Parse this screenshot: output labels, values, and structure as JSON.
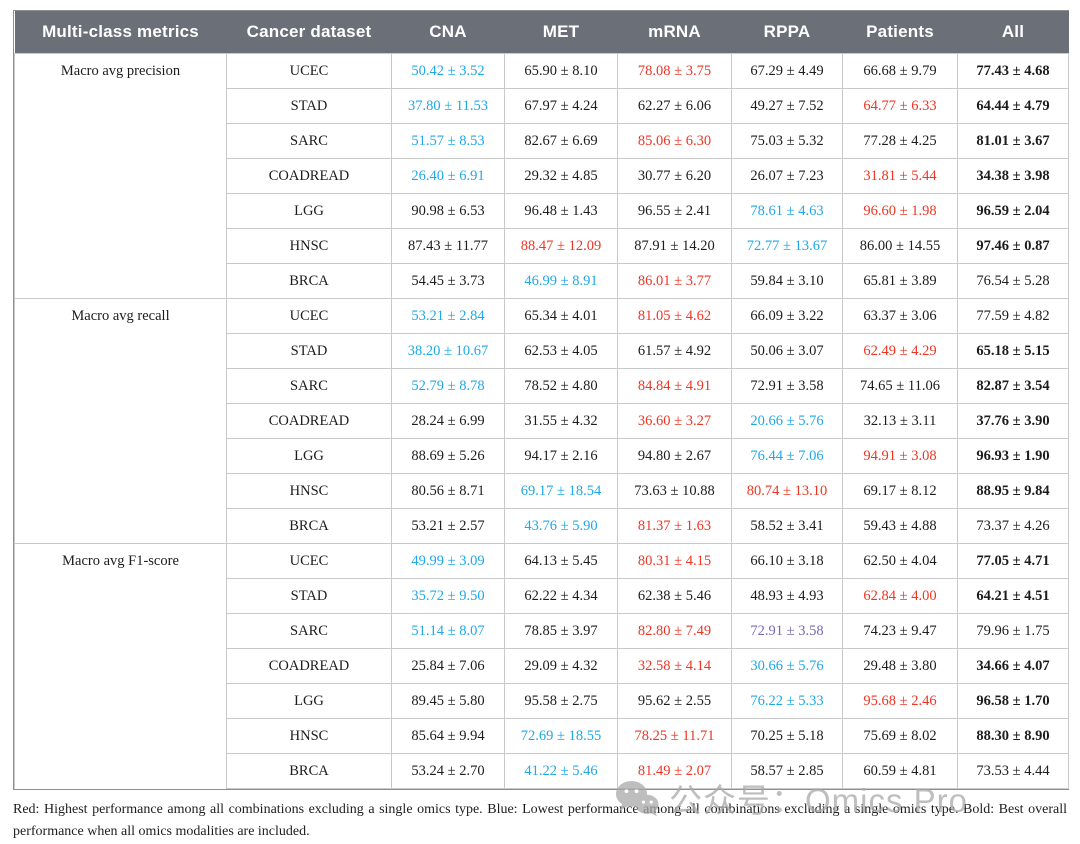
{
  "colors": {
    "header_bg": "#6b6f78",
    "red": "#ee3524",
    "blue": "#1fa8e8",
    "purple": "#7b68ae",
    "grid_line": "#c9c9c9",
    "outer_border": "#8f8f8f"
  },
  "header": {
    "columns": [
      "Multi-class metrics",
      "Cancer dataset",
      "CNA",
      "MET",
      "mRNA",
      "RPPA",
      "Patients",
      "All"
    ]
  },
  "sections": [
    {
      "metric": "Macro avg precision",
      "rows": [
        {
          "dataset": "UCEC",
          "cells": [
            {
              "v": "50.42 ± 3.52",
              "s": "blue"
            },
            {
              "v": "65.90 ± 8.10",
              "s": "plain"
            },
            {
              "v": "78.08 ± 3.75",
              "s": "red"
            },
            {
              "v": "67.29 ± 4.49",
              "s": "plain"
            },
            {
              "v": "66.68 ± 9.79",
              "s": "plain"
            },
            {
              "v": "77.43 ± 4.68",
              "s": "bold"
            }
          ]
        },
        {
          "dataset": "STAD",
          "cells": [
            {
              "v": "37.80 ± 11.53",
              "s": "blue"
            },
            {
              "v": "67.97 ± 4.24",
              "s": "plain"
            },
            {
              "v": "62.27 ± 6.06",
              "s": "plain"
            },
            {
              "v": "49.27 ± 7.52",
              "s": "plain"
            },
            {
              "v": "64.77 ± 6.33",
              "s": "red"
            },
            {
              "v": "64.44 ± 4.79",
              "s": "bold"
            }
          ]
        },
        {
          "dataset": "SARC",
          "cells": [
            {
              "v": "51.57 ± 8.53",
              "s": "blue"
            },
            {
              "v": "82.67 ± 6.69",
              "s": "plain"
            },
            {
              "v": "85.06 ± 6.30",
              "s": "red"
            },
            {
              "v": "75.03 ± 5.32",
              "s": "plain"
            },
            {
              "v": "77.28 ± 4.25",
              "s": "plain"
            },
            {
              "v": "81.01 ± 3.67",
              "s": "bold"
            }
          ]
        },
        {
          "dataset": "COADREAD",
          "cells": [
            {
              "v": "26.40 ± 6.91",
              "s": "blue"
            },
            {
              "v": "29.32 ± 4.85",
              "s": "plain"
            },
            {
              "v": "30.77 ± 6.20",
              "s": "plain"
            },
            {
              "v": "26.07 ± 7.23",
              "s": "plain"
            },
            {
              "v": "31.81 ± 5.44",
              "s": "red"
            },
            {
              "v": "34.38 ± 3.98",
              "s": "bold"
            }
          ]
        },
        {
          "dataset": "LGG",
          "cells": [
            {
              "v": "90.98 ± 6.53",
              "s": "plain"
            },
            {
              "v": "96.48 ± 1.43",
              "s": "plain"
            },
            {
              "v": "96.55 ± 2.41",
              "s": "plain"
            },
            {
              "v": "78.61 ± 4.63",
              "s": "blue"
            },
            {
              "v": "96.60 ± 1.98",
              "s": "red"
            },
            {
              "v": "96.59 ± 2.04",
              "s": "bold"
            }
          ]
        },
        {
          "dataset": "HNSC",
          "cells": [
            {
              "v": "87.43 ± 11.77",
              "s": "plain"
            },
            {
              "v": "88.47 ± 12.09",
              "s": "red"
            },
            {
              "v": "87.91 ± 14.20",
              "s": "plain"
            },
            {
              "v": "72.77 ± 13.67",
              "s": "blue"
            },
            {
              "v": "86.00 ± 14.55",
              "s": "plain"
            },
            {
              "v": "97.46 ± 0.87",
              "s": "bold"
            }
          ]
        },
        {
          "dataset": "BRCA",
          "cells": [
            {
              "v": "54.45 ± 3.73",
              "s": "plain"
            },
            {
              "v": "46.99 ± 8.91",
              "s": "blue"
            },
            {
              "v": "86.01 ± 3.77",
              "s": "red"
            },
            {
              "v": "59.84 ± 3.10",
              "s": "plain"
            },
            {
              "v": "65.81 ± 3.89",
              "s": "plain"
            },
            {
              "v": "76.54 ± 5.28",
              "s": "plain"
            }
          ]
        }
      ]
    },
    {
      "metric": "Macro avg recall",
      "rows": [
        {
          "dataset": "UCEC",
          "cells": [
            {
              "v": "53.21 ± 2.84",
              "s": "blue"
            },
            {
              "v": "65.34 ± 4.01",
              "s": "plain"
            },
            {
              "v": "81.05 ± 4.62",
              "s": "red"
            },
            {
              "v": "66.09 ± 3.22",
              "s": "plain"
            },
            {
              "v": "63.37 ± 3.06",
              "s": "plain"
            },
            {
              "v": "77.59 ± 4.82",
              "s": "plain"
            }
          ]
        },
        {
          "dataset": "STAD",
          "cells": [
            {
              "v": "38.20 ± 10.67",
              "s": "blue"
            },
            {
              "v": "62.53 ± 4.05",
              "s": "plain"
            },
            {
              "v": "61.57 ± 4.92",
              "s": "plain"
            },
            {
              "v": "50.06 ± 3.07",
              "s": "plain"
            },
            {
              "v": "62.49 ± 4.29",
              "s": "red"
            },
            {
              "v": "65.18 ± 5.15",
              "s": "bold"
            }
          ]
        },
        {
          "dataset": "SARC",
          "cells": [
            {
              "v": "52.79 ± 8.78",
              "s": "blue"
            },
            {
              "v": "78.52 ± 4.80",
              "s": "plain"
            },
            {
              "v": "84.84 ± 4.91",
              "s": "red"
            },
            {
              "v": "72.91 ± 3.58",
              "s": "plain"
            },
            {
              "v": "74.65 ± 11.06",
              "s": "plain"
            },
            {
              "v": "82.87 ± 3.54",
              "s": "bold"
            }
          ]
        },
        {
          "dataset": "COADREAD",
          "cells": [
            {
              "v": "28.24 ± 6.99",
              "s": "plain"
            },
            {
              "v": "31.55 ± 4.32",
              "s": "plain"
            },
            {
              "v": "36.60 ± 3.27",
              "s": "red"
            },
            {
              "v": "20.66 ± 5.76",
              "s": "blue"
            },
            {
              "v": "32.13 ± 3.11",
              "s": "plain"
            },
            {
              "v": "37.76 ± 3.90",
              "s": "bold"
            }
          ]
        },
        {
          "dataset": "LGG",
          "cells": [
            {
              "v": "88.69 ± 5.26",
              "s": "plain"
            },
            {
              "v": "94.17 ± 2.16",
              "s": "plain"
            },
            {
              "v": "94.80 ± 2.67",
              "s": "plain"
            },
            {
              "v": "76.44 ± 7.06",
              "s": "blue"
            },
            {
              "v": "94.91 ± 3.08",
              "s": "red"
            },
            {
              "v": "96.93 ± 1.90",
              "s": "bold"
            }
          ]
        },
        {
          "dataset": "HNSC",
          "cells": [
            {
              "v": "80.56 ± 8.71",
              "s": "plain"
            },
            {
              "v": "69.17 ± 18.54",
              "s": "blue"
            },
            {
              "v": "73.63 ± 10.88",
              "s": "plain"
            },
            {
              "v": "80.74 ± 13.10",
              "s": "red"
            },
            {
              "v": "69.17 ± 8.12",
              "s": "plain"
            },
            {
              "v": "88.95 ± 9.84",
              "s": "bold"
            }
          ]
        },
        {
          "dataset": "BRCA",
          "cells": [
            {
              "v": "53.21 ± 2.57",
              "s": "plain"
            },
            {
              "v": "43.76 ± 5.90",
              "s": "blue"
            },
            {
              "v": "81.37 ± 1.63",
              "s": "red"
            },
            {
              "v": "58.52 ± 3.41",
              "s": "plain"
            },
            {
              "v": "59.43 ± 4.88",
              "s": "plain"
            },
            {
              "v": "73.37 ± 4.26",
              "s": "plain"
            }
          ]
        }
      ]
    },
    {
      "metric": "Macro avg F1-score",
      "rows": [
        {
          "dataset": "UCEC",
          "cells": [
            {
              "v": "49.99 ± 3.09",
              "s": "blue"
            },
            {
              "v": "64.13 ± 5.45",
              "s": "plain"
            },
            {
              "v": "80.31 ± 4.15",
              "s": "red"
            },
            {
              "v": "66.10 ± 3.18",
              "s": "plain"
            },
            {
              "v": "62.50 ± 4.04",
              "s": "plain"
            },
            {
              "v": "77.05 ± 4.71",
              "s": "bold"
            }
          ]
        },
        {
          "dataset": "STAD",
          "cells": [
            {
              "v": "35.72 ± 9.50",
              "s": "blue"
            },
            {
              "v": "62.22 ± 4.34",
              "s": "plain"
            },
            {
              "v": "62.38 ± 5.46",
              "s": "plain"
            },
            {
              "v": "48.93 ± 4.93",
              "s": "plain"
            },
            {
              "v": "62.84 ± 4.00",
              "s": "red"
            },
            {
              "v": "64.21 ± 4.51",
              "s": "bold"
            }
          ]
        },
        {
          "dataset": "SARC",
          "cells": [
            {
              "v": "51.14 ± 8.07",
              "s": "blue"
            },
            {
              "v": "78.85 ± 3.97",
              "s": "plain"
            },
            {
              "v": "82.80 ± 7.49",
              "s": "red"
            },
            {
              "v": "72.91 ± 3.58",
              "s": "purple"
            },
            {
              "v": "74.23 ± 9.47",
              "s": "plain"
            },
            {
              "v": "79.96 ± 1.75",
              "s": "plain"
            }
          ]
        },
        {
          "dataset": "COADREAD",
          "cells": [
            {
              "v": "25.84 ± 7.06",
              "s": "plain"
            },
            {
              "v": "29.09 ± 4.32",
              "s": "plain"
            },
            {
              "v": "32.58 ± 4.14",
              "s": "red"
            },
            {
              "v": "30.66 ± 5.76",
              "s": "blue"
            },
            {
              "v": "29.48 ± 3.80",
              "s": "plain"
            },
            {
              "v": "34.66 ± 4.07",
              "s": "bold"
            }
          ]
        },
        {
          "dataset": "LGG",
          "cells": [
            {
              "v": "89.45 ± 5.80",
              "s": "plain"
            },
            {
              "v": "95.58 ± 2.75",
              "s": "plain"
            },
            {
              "v": "95.62 ± 2.55",
              "s": "plain"
            },
            {
              "v": "76.22 ± 5.33",
              "s": "blue"
            },
            {
              "v": "95.68 ± 2.46",
              "s": "red"
            },
            {
              "v": "96.58 ± 1.70",
              "s": "bold"
            }
          ]
        },
        {
          "dataset": "HNSC",
          "cells": [
            {
              "v": "85.64 ± 9.94",
              "s": "plain"
            },
            {
              "v": "72.69 ± 18.55",
              "s": "blue"
            },
            {
              "v": "78.25 ± 11.71",
              "s": "red"
            },
            {
              "v": "70.25 ± 5.18",
              "s": "plain"
            },
            {
              "v": "75.69 ± 8.02",
              "s": "plain"
            },
            {
              "v": "88.30 ± 8.90",
              "s": "bold"
            }
          ]
        },
        {
          "dataset": "BRCA",
          "cells": [
            {
              "v": "53.24 ± 2.70",
              "s": "plain"
            },
            {
              "v": "41.22 ± 5.46",
              "s": "blue"
            },
            {
              "v": "81.49 ± 2.07",
              "s": "red"
            },
            {
              "v": "58.57 ± 2.85",
              "s": "plain"
            },
            {
              "v": "60.59 ± 4.81",
              "s": "plain"
            },
            {
              "v": "73.53 ± 4.44",
              "s": "plain"
            }
          ]
        }
      ]
    }
  ],
  "caption": "Red: Highest performance among all combinations excluding a single omics type. Blue: Lowest performance among all combinations excluding a single omics type. Bold: Best overall performance when all omics modalities are included.",
  "watermark": {
    "text": "公众号：Omics Pro"
  }
}
